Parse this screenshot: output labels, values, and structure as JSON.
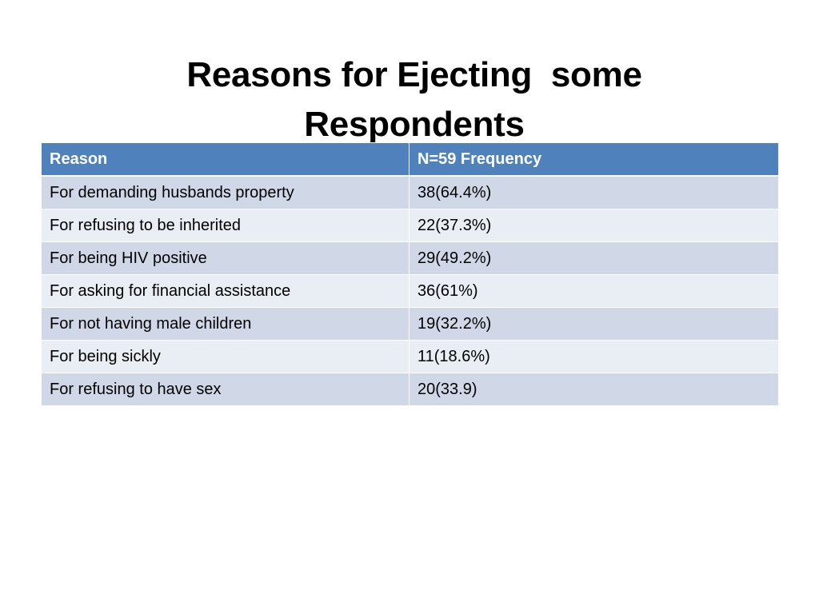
{
  "slide": {
    "title_lines": [
      "Reasons for Ejecting  some",
      "Respondents"
    ]
  },
  "table": {
    "headers": [
      "Reason",
      "N=59 Frequency"
    ],
    "rows": [
      [
        "For demanding husbands property",
        "38(64.4%)"
      ],
      [
        "For refusing to be inherited",
        "22(37.3%)"
      ],
      [
        "For being HIV positive",
        "29(49.2%)"
      ],
      [
        "For asking for financial assistance",
        "36(61%)"
      ],
      [
        "For not having male children",
        "19(32.2%)"
      ],
      [
        "For being sickly",
        "11(18.6%)"
      ],
      [
        "For refusing to have sex",
        "20(33.9)"
      ]
    ]
  },
  "colors": {
    "header_bg": "#4f81bd",
    "row_odd_bg": "#d0d8e8",
    "row_even_bg": "#e9edf4"
  }
}
